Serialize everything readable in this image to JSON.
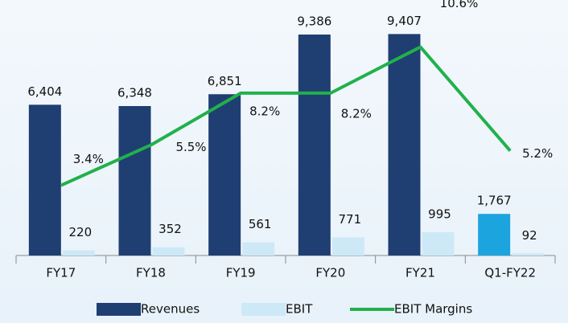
{
  "chart_data": {
    "type": "bar",
    "categories": [
      "FY17",
      "FY18",
      "FY19",
      "FY20",
      "FY21",
      "Q1-FY22"
    ],
    "ylim": [
      0,
      10000
    ],
    "y2lim": [
      -0.25,
      12
    ],
    "legend": "bottom",
    "series": [
      {
        "name": "Revenues",
        "type": "bar",
        "color": "#1f3e72",
        "colors": [
          "#1f3e72",
          "#1f3e72",
          "#1f3e72",
          "#1f3e72",
          "#1f3e72",
          "#1ca4df"
        ],
        "values": [
          6404,
          6348,
          6851,
          9386,
          9407,
          1767
        ],
        "value_labels": [
          "6,404",
          "6,348",
          "6,851",
          "9,386",
          "9,407",
          "1,767"
        ]
      },
      {
        "name": "EBIT",
        "type": "bar",
        "color": "#cde9f8",
        "values": [
          220,
          352,
          561,
          771,
          995,
          92
        ]
      },
      {
        "name": "EBIT Margins",
        "type": "line",
        "axis": "y2",
        "color": "#21b14b",
        "values": [
          3.4,
          5.5,
          8.2,
          8.2,
          10.6,
          5.2
        ],
        "value_labels": [
          "3.4%",
          "5.5%",
          "8.2%",
          "8.2%",
          "10.6%",
          "5.2%"
        ]
      }
    ]
  }
}
